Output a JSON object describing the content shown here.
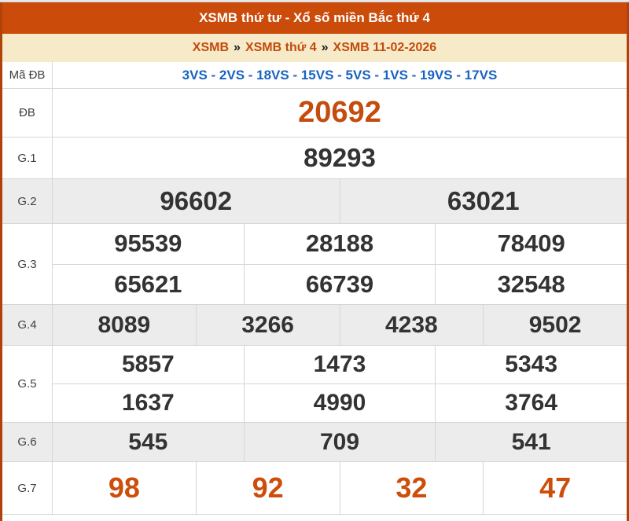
{
  "header": {
    "title": "XSMB thứ tư - Xổ số miền Bắc thứ 4"
  },
  "breadcrumb": {
    "separator": "»",
    "items": [
      "XSMB",
      "XSMB thứ 4",
      "XSMB 11-02-2026"
    ]
  },
  "results": {
    "ma_db": {
      "label": "Mã ĐB",
      "codes": "3VS - 2VS - 18VS - 15VS - 5VS - 1VS - 19VS - 17VS"
    },
    "db": {
      "label": "ĐB",
      "values": [
        "20692"
      ]
    },
    "g1": {
      "label": "G.1",
      "values": [
        "89293"
      ]
    },
    "g2": {
      "label": "G.2",
      "values": [
        "96602",
        "63021"
      ]
    },
    "g3": {
      "label": "G.3",
      "row1": [
        "95539",
        "28188",
        "78409"
      ],
      "row2": [
        "65621",
        "66739",
        "32548"
      ]
    },
    "g4": {
      "label": "G.4",
      "values": [
        "8089",
        "3266",
        "4238",
        "9502"
      ]
    },
    "g5": {
      "label": "G.5",
      "row1": [
        "5857",
        "1473",
        "5343"
      ],
      "row2": [
        "1637",
        "4990",
        "3764"
      ]
    },
    "g6": {
      "label": "G.6",
      "values": [
        "545",
        "709",
        "541"
      ]
    },
    "g7": {
      "label": "G.7",
      "values": [
        "98",
        "92",
        "32",
        "47"
      ]
    }
  },
  "colors": {
    "header_bg": "#cb4b0a",
    "side_border": "#b0430a",
    "breadcrumb_bg": "#f6eac8",
    "breadcrumb_link": "#c54a0b",
    "code_blue": "#1863c0",
    "special_orange": "#c44c0d",
    "g7_orange": "#cc4e0a",
    "number_dark": "#333333",
    "row_alt_bg": "#ececec"
  }
}
